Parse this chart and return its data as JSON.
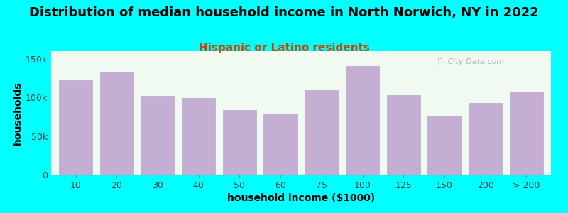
{
  "title": "Distribution of median household income in North Norwich, NY in 2022",
  "subtitle": "Hispanic or Latino residents",
  "xlabel": "household income ($1000)",
  "ylabel": "households",
  "background_color": "#00FFFF",
  "plot_bg_top": "#e8f5e8",
  "plot_bg_bottom": "#f5f0ff",
  "bar_color": "#C4AED4",
  "bar_edge_color": "#B8A8CC",
  "categories": [
    "10",
    "20",
    "30",
    "40",
    "50",
    "60",
    "75",
    "100",
    "125",
    "150",
    "200",
    "> 200"
  ],
  "values": [
    122000,
    133000,
    102000,
    99000,
    84000,
    79000,
    109000,
    141000,
    103000,
    76000,
    93000,
    108000
  ],
  "yticks": [
    0,
    50000,
    100000,
    150000
  ],
  "ytick_labels": [
    "0",
    "50k",
    "100k",
    "150k"
  ],
  "ylim": [
    0,
    160000
  ],
  "title_fontsize": 13,
  "subtitle_fontsize": 11,
  "axis_label_fontsize": 10,
  "tick_fontsize": 9,
  "title_color": "#000000",
  "subtitle_color": "#cc4400",
  "axis_label_color": "#000000",
  "watermark_text": "ⓘ  City-Data.com",
  "watermark_color": "#aaaaaa"
}
